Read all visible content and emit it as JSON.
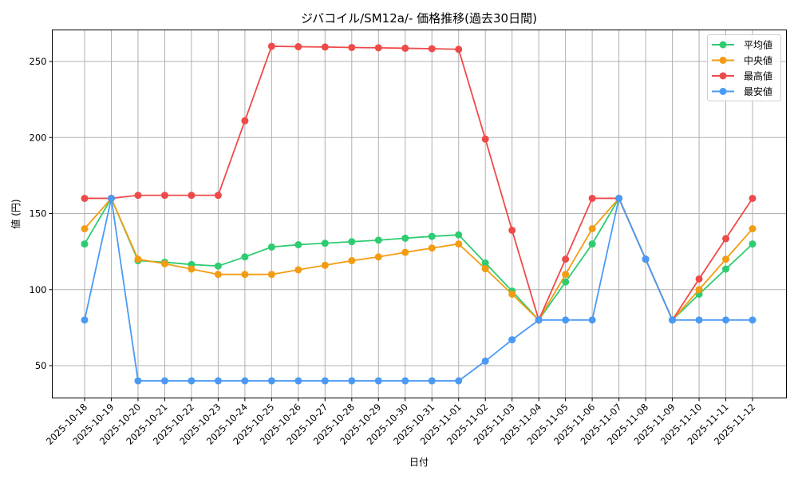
{
  "chart_data": {
    "type": "line",
    "title": "ジバコイル/SM12a/- 価格推移(過去30日間)",
    "xlabel": "日付",
    "ylabel": "値 (円)",
    "ylim": [
      29,
      271
    ],
    "yticks": [
      50,
      100,
      150,
      200,
      250
    ],
    "grid": true,
    "legend_position": "upper right",
    "categories": [
      "2025-10-18",
      "2025-10-19",
      "2025-10-20",
      "2025-10-21",
      "2025-10-22",
      "2025-10-23",
      "2025-10-24",
      "2025-10-25",
      "2025-10-26",
      "2025-10-27",
      "2025-10-28",
      "2025-10-29",
      "2025-10-30",
      "2025-10-31",
      "2025-11-01",
      "2025-11-02",
      "2025-11-03",
      "2025-11-04",
      "2025-11-05",
      "2025-11-06",
      "2025-11-07",
      "2025-11-08",
      "2025-11-09",
      "2025-11-10",
      "2025-11-11",
      "2025-11-12"
    ],
    "series": [
      {
        "name": "平均値",
        "color": "#2ecc71",
        "values": [
          130,
          160,
          119,
          118,
          116.5,
          115.5,
          121.5,
          128,
          129.5,
          130.5,
          131.5,
          132.5,
          133.8,
          135,
          136,
          117.5,
          99,
          80,
          105,
          130,
          160,
          120,
          80,
          97,
          113.5,
          130
        ]
      },
      {
        "name": "中央値",
        "color": "#f39c12",
        "values": [
          140,
          160,
          120,
          117,
          113.5,
          110,
          110,
          110,
          113,
          116,
          119,
          121.5,
          124.5,
          127.3,
          130,
          113.7,
          97,
          80,
          110,
          140,
          160,
          120,
          80,
          100,
          120,
          140
        ]
      },
      {
        "name": "最高値",
        "color": "#ef4a4a",
        "values": [
          160,
          160,
          162,
          162,
          162,
          162,
          211,
          260,
          259.7,
          259.5,
          259.2,
          259,
          258.7,
          258.4,
          258,
          199,
          139,
          80,
          120,
          160,
          160,
          120,
          80,
          107,
          133.5,
          160
        ]
      },
      {
        "name": "最安値",
        "color": "#4a9af5",
        "values": [
          80,
          160,
          40,
          40,
          40,
          40,
          40,
          40,
          40,
          40,
          40,
          40,
          40,
          40,
          40,
          53,
          67,
          80,
          80,
          80,
          160,
          120,
          80,
          80,
          80,
          80
        ]
      }
    ]
  }
}
